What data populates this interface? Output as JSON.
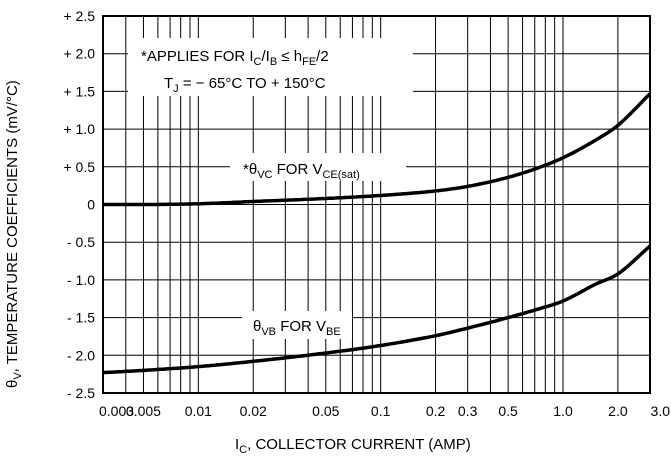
{
  "chart_data": {
    "type": "line",
    "xlabel": "I_C, COLLECTOR CURRENT (AMP)",
    "ylabel": "θ_V, TEMPERATURE COEFFICIENTS (mV/°C)",
    "x_scale": "log",
    "xlim": [
      0.003,
      3.0
    ],
    "ylim": [
      -2.5,
      2.5
    ],
    "grid": true,
    "x_ticks": [
      0.003,
      0.005,
      0.01,
      0.02,
      0.05,
      0.1,
      0.2,
      0.3,
      0.5,
      1.0,
      2.0,
      3.0
    ],
    "x_tick_labels": [
      "0.003",
      "0.005",
      "0.01",
      "0.02",
      "0.05",
      "0.1",
      "0.2",
      "0.3",
      "0.5",
      "1.0",
      "2.0",
      "3.0"
    ],
    "y_ticks": [
      2.5,
      2.0,
      1.5,
      1.0,
      0.5,
      0,
      -0.5,
      -1.0,
      -1.5,
      -2.0,
      -2.5
    ],
    "y_tick_labels": [
      "+ 2.5",
      "+ 2.0",
      "+ 1.5",
      "+ 1.0",
      "+ 0.5",
      "0",
      "- 0.5",
      "- 1.0",
      "- 1.5",
      "- 2.0",
      "- 2.5"
    ],
    "note_lines": [
      "*APPLIES FOR I_C/I_B ≤ h_FE/2",
      "T_J = − 65°C TO + 150°C"
    ],
    "series": [
      {
        "name": "*θ_VC FOR V_CE(sat)",
        "x": [
          0.003,
          0.005,
          0.01,
          0.02,
          0.05,
          0.1,
          0.2,
          0.3,
          0.5,
          0.7,
          1.0,
          1.5,
          2.0,
          3.0
        ],
        "y": [
          0.0,
          0.0,
          0.01,
          0.04,
          0.08,
          0.12,
          0.18,
          0.24,
          0.36,
          0.47,
          0.62,
          0.85,
          1.05,
          1.47
        ]
      },
      {
        "name": "θ_VB FOR V_BE",
        "x": [
          0.003,
          0.005,
          0.01,
          0.02,
          0.05,
          0.1,
          0.2,
          0.3,
          0.5,
          0.7,
          1.0,
          1.5,
          2.0,
          3.0
        ],
        "y": [
          -2.23,
          -2.2,
          -2.15,
          -2.08,
          -1.97,
          -1.87,
          -1.74,
          -1.64,
          -1.5,
          -1.4,
          -1.28,
          -1.06,
          -0.92,
          -0.55
        ]
      }
    ]
  }
}
